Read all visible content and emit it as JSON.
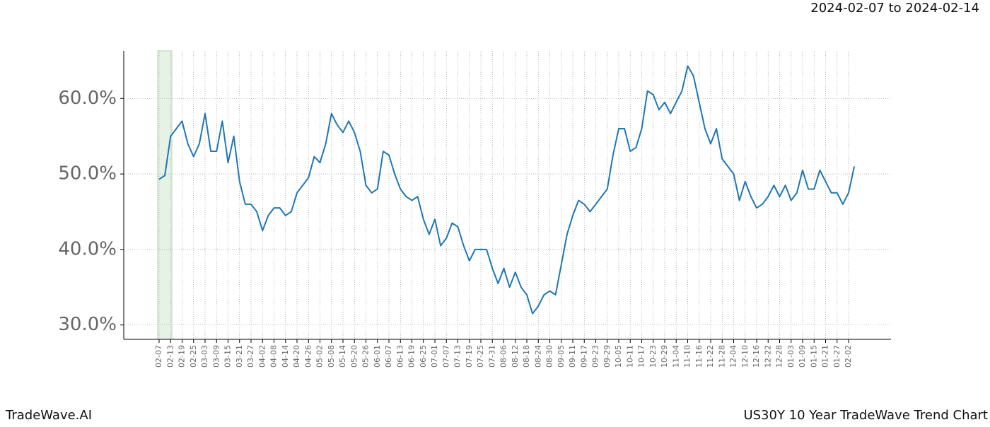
{
  "chart_data": {
    "type": "line",
    "title": "2024-02-07 to 2024-02-14",
    "footer_left": "TradeWave.AI",
    "footer_right": "US30Y 10 Year TradeWave Trend Chart",
    "categories": [
      "02-07",
      null,
      "02-13",
      null,
      "02-19",
      null,
      "02-25",
      null,
      "03-03",
      null,
      "03-09",
      null,
      "03-15",
      null,
      "03-21",
      null,
      "03-27",
      null,
      "04-02",
      null,
      "04-08",
      null,
      "04-14",
      null,
      "04-20",
      null,
      "04-26",
      null,
      "05-02",
      null,
      "05-08",
      null,
      "05-14",
      null,
      "05-20",
      null,
      "05-26",
      null,
      "06-01",
      null,
      "06-07",
      null,
      "06-13",
      null,
      "06-19",
      null,
      "06-25",
      null,
      "07-01",
      null,
      "07-07",
      null,
      "07-13",
      null,
      "07-19",
      null,
      "07-25",
      null,
      "07-31",
      null,
      "08-06",
      null,
      "08-12",
      null,
      "08-18",
      null,
      "08-24",
      null,
      "08-30",
      null,
      "09-05",
      null,
      "09-11",
      null,
      "09-17",
      null,
      "09-23",
      null,
      "09-29",
      null,
      "10-05",
      null,
      "10-11",
      null,
      "10-17",
      null,
      "10-23",
      null,
      "10-29",
      null,
      "11-04",
      null,
      "11-10",
      null,
      "11-16",
      null,
      "11-22",
      null,
      "11-28",
      null,
      "12-04",
      null,
      "12-10",
      null,
      "12-16",
      null,
      "12-22",
      null,
      "12-28",
      null,
      "01-03",
      null,
      "01-09",
      null,
      "01-15",
      null,
      "01-21",
      null,
      "01-27",
      null,
      "02-02",
      null
    ],
    "series": [
      {
        "color": "#1f77b4",
        "values": [
          49.3,
          49.8,
          55,
          56,
          57,
          54,
          52.3,
          54,
          58,
          53,
          53,
          57,
          51.5,
          55,
          49,
          46,
          46,
          45,
          42.5,
          44.5,
          45.5,
          45.5,
          44.5,
          45,
          47.5,
          48.5,
          49.5,
          52.3,
          51.5,
          54,
          58,
          56.5,
          55.5,
          57,
          55.5,
          53,
          48.5,
          47.5,
          48,
          53,
          52.5,
          50,
          48,
          47,
          46.5,
          47,
          44,
          42,
          44,
          40.5,
          41.5,
          43.5,
          43,
          40.5,
          38.5,
          40,
          40,
          40,
          37.5,
          35.5,
          37.5,
          35,
          37,
          35,
          34,
          31.5,
          32.5,
          34,
          34.5,
          34,
          38,
          42,
          44.5,
          46.5,
          46,
          45,
          46,
          47,
          48,
          52.5,
          56,
          56,
          53,
          53.5,
          56,
          61,
          60.5,
          58.5,
          59.5,
          58,
          59.5,
          61,
          64.3,
          63,
          59.5,
          56,
          54,
          56,
          52,
          51,
          50,
          46.5,
          49,
          47,
          45.5,
          46,
          47,
          48.5,
          47,
          48.5,
          46.5,
          47.5,
          50.5,
          48,
          48,
          50.5,
          49,
          47.5,
          47.5,
          46,
          47.5,
          51
        ]
      }
    ],
    "ylim": [
      28.1,
      66.3
    ],
    "yticks": [
      {
        "value": 30,
        "label": "30.0%"
      },
      {
        "value": 40,
        "label": "40.0%"
      },
      {
        "value": 50,
        "label": "50.0%"
      },
      {
        "value": 60,
        "label": "60.0%"
      }
    ],
    "grid": true
  }
}
